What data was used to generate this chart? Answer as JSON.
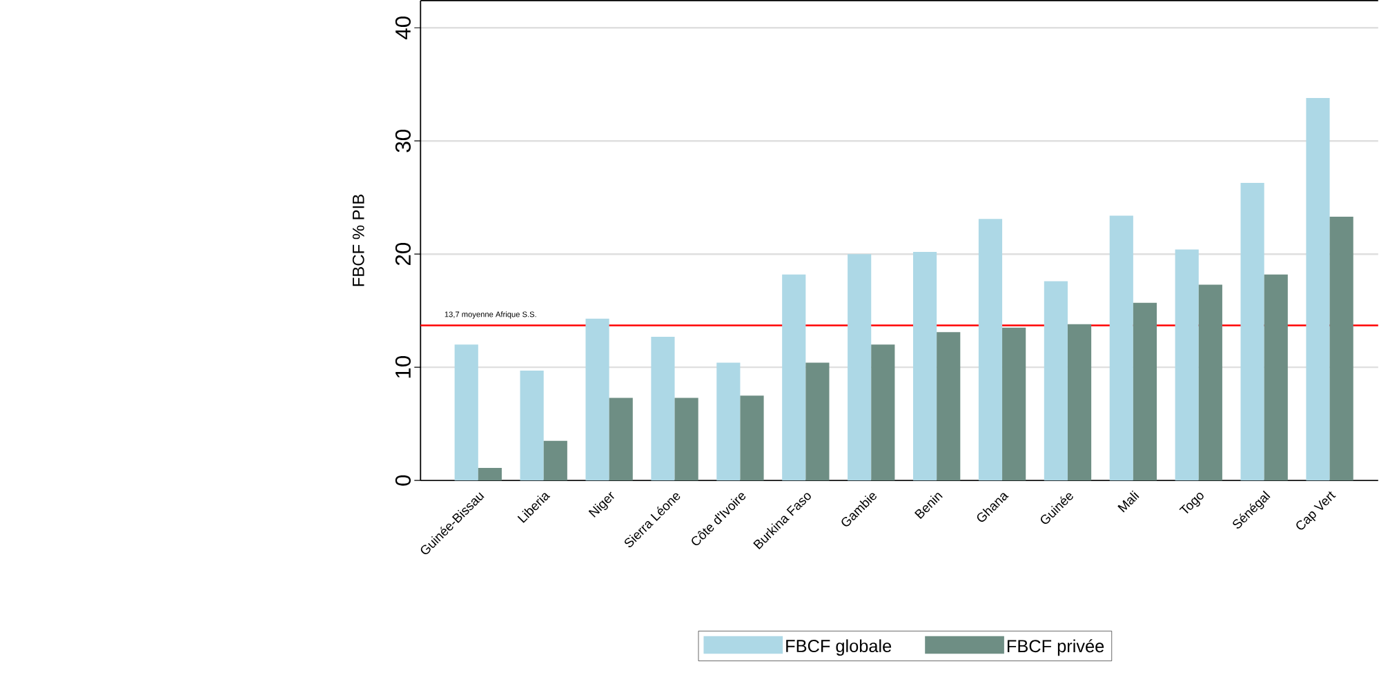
{
  "chart_data": {
    "type": "bar",
    "ylabel": "FBCF % PIB",
    "categories": [
      "Guinée-Bissau",
      "Liberia",
      "Niger",
      "Sierra Léone",
      "Côte d'Ivoire",
      "Burkina Faso",
      "Gambie",
      "Benin",
      "Ghana",
      "Guinée",
      "Mali",
      "Togo",
      "Sénégal",
      "Cap Vert"
    ],
    "series": [
      {
        "name": "FBCF globale",
        "color": "#add8e6",
        "values": [
          12.0,
          9.7,
          14.3,
          12.7,
          10.4,
          18.2,
          20.0,
          20.2,
          23.1,
          17.6,
          23.4,
          20.4,
          26.3,
          33.8
        ]
      },
      {
        "name": "FBCF privée",
        "color": "#6e8e84",
        "values": [
          1.1,
          3.5,
          7.3,
          7.3,
          7.5,
          10.4,
          12.0,
          13.1,
          13.5,
          13.8,
          15.7,
          17.3,
          18.2,
          23.3
        ]
      }
    ],
    "ylim": [
      0,
      42.4
    ],
    "yticks": [
      0,
      10,
      20,
      30,
      40
    ],
    "grid": "y",
    "legend": "bottom",
    "ref_lines": [
      {
        "axis": "y",
        "value": 13.7,
        "label": "13,7 moyenne Afrique S.S.",
        "color": "#ff0000"
      }
    ]
  }
}
